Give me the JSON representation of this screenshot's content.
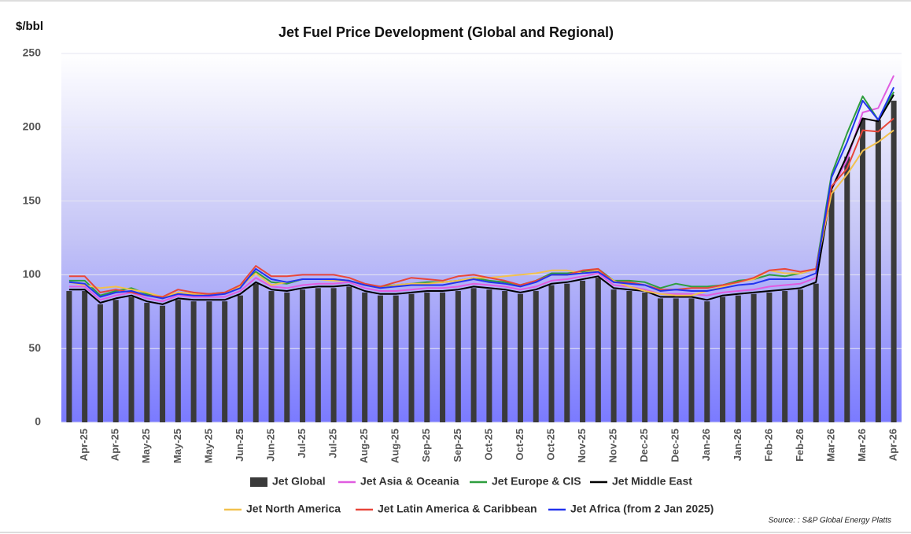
{
  "chart_data": {
    "type": "bar",
    "title": "Jet Fuel Price Development (Global and Regional)",
    "y_label": "$/bbl",
    "source": "Source:  : S&P Global Energy Platts",
    "categories": [
      null,
      "Apr-25",
      null,
      "Apr-25",
      null,
      "May-25",
      null,
      "May-25",
      null,
      "May-25",
      null,
      "Jun-25",
      null,
      "Jun-25",
      null,
      "Jul-25",
      null,
      "Jul-25",
      null,
      "Aug-25",
      null,
      "Aug-25",
      null,
      "Sep-25",
      null,
      "Sep-25",
      null,
      "Oct-25",
      null,
      "Oct-25",
      null,
      "Oct-25",
      null,
      "Nov-25",
      null,
      "Nov-25",
      null,
      "Dec-25",
      null,
      "Dec-25",
      null,
      "Jan-26",
      null,
      "Jan-26",
      null,
      "Feb-26",
      null,
      "Feb-26",
      null,
      "Mar-26",
      null,
      "Mar-26",
      null,
      "Apr-26"
    ],
    "ylim": [
      0,
      250
    ],
    "yticks": [
      0,
      50,
      100,
      150,
      200,
      250
    ],
    "grid": true,
    "series": [
      {
        "name": "Jet Global",
        "type": "bar",
        "color": "#3a3a3a",
        "values": [
          89,
          89,
          80,
          83,
          85,
          81,
          79,
          83,
          82,
          82,
          82,
          86,
          94,
          89,
          88,
          90,
          91,
          91,
          92,
          88,
          86,
          86,
          87,
          88,
          88,
          89,
          91,
          90,
          89,
          87,
          89,
          93,
          94,
          96,
          98,
          90,
          89,
          88,
          84,
          84,
          84,
          82,
          85,
          86,
          87,
          88,
          89,
          90,
          94,
          157,
          180,
          206,
          205,
          218
        ]
      },
      {
        "name": "Jet Asia & Oceania",
        "type": "line",
        "color": "#e05ce0",
        "values": [
          92,
          92,
          83,
          86,
          88,
          84,
          82,
          86,
          85,
          85,
          85,
          89,
          98,
          92,
          91,
          93,
          94,
          94,
          95,
          91,
          89,
          89,
          90,
          91,
          91,
          92,
          94,
          93,
          92,
          90,
          92,
          96,
          97,
          99,
          101,
          93,
          92,
          90,
          87,
          87,
          87,
          86,
          88,
          89,
          90,
          92,
          93,
          94,
          98,
          158,
          178,
          210,
          213,
          235
        ]
      },
      {
        "name": "Jet Europe & CIS",
        "type": "line",
        "color": "#2e9e3e",
        "values": [
          96,
          96,
          86,
          89,
          91,
          87,
          84,
          88,
          87,
          87,
          88,
          92,
          102,
          95,
          94,
          97,
          97,
          97,
          96,
          93,
          92,
          93,
          94,
          95,
          95,
          96,
          98,
          96,
          95,
          93,
          96,
          101,
          101,
          102,
          104,
          96,
          96,
          95,
          91,
          94,
          92,
          92,
          93,
          96,
          97,
          100,
          99,
          101,
          104,
          168,
          196,
          221,
          205,
          224
        ]
      },
      {
        "name": "Jet Middle East",
        "type": "line",
        "color": "#000000",
        "values": [
          90,
          90,
          81,
          84,
          86,
          82,
          80,
          84,
          83,
          83,
          83,
          87,
          95,
          90,
          89,
          91,
          92,
          92,
          93,
          89,
          87,
          87,
          88,
          89,
          89,
          90,
          92,
          91,
          90,
          88,
          90,
          94,
          95,
          97,
          99,
          91,
          90,
          89,
          85,
          85,
          85,
          83,
          86,
          87,
          88,
          89,
          90,
          91,
          95,
          158,
          181,
          206,
          204,
          222
        ]
      },
      {
        "name": "Jet North America",
        "type": "line",
        "color": "#f2c14e",
        "values": [
          95,
          93,
          91,
          92,
          90,
          88,
          85,
          88,
          87,
          86,
          88,
          92,
          101,
          93,
          95,
          97,
          97,
          96,
          96,
          93,
          91,
          93,
          94,
          94,
          95,
          96,
          98,
          98,
          99,
          100,
          101,
          103,
          103,
          101,
          103,
          96,
          92,
          89,
          87,
          86,
          86,
          89,
          92,
          95,
          97,
          103,
          101,
          101,
          104,
          155,
          168,
          184,
          190,
          198
        ]
      },
      {
        "name": "Jet Latin America & Caribbean",
        "type": "line",
        "color": "#e8463a",
        "values": [
          99,
          99,
          88,
          90,
          88,
          86,
          85,
          90,
          88,
          87,
          88,
          93,
          106,
          99,
          99,
          100,
          100,
          100,
          98,
          94,
          92,
          95,
          98,
          97,
          96,
          99,
          100,
          98,
          96,
          93,
          96,
          100,
          100,
          103,
          104,
          95,
          95,
          93,
          90,
          90,
          91,
          91,
          93,
          95,
          98,
          103,
          104,
          102,
          104,
          160,
          172,
          198,
          197,
          206
        ]
      },
      {
        "name": "Jet Africa (from 2 Jan 2025)",
        "type": "line",
        "color": "#2233ee",
        "values": [
          95,
          94,
          85,
          88,
          89,
          86,
          84,
          87,
          86,
          86,
          87,
          91,
          104,
          97,
          95,
          97,
          97,
          97,
          96,
          93,
          91,
          92,
          93,
          93,
          93,
          95,
          97,
          95,
          94,
          92,
          95,
          100,
          100,
          101,
          102,
          95,
          94,
          93,
          89,
          90,
          89,
          89,
          91,
          93,
          94,
          97,
          97,
          97,
          101,
          166,
          190,
          218,
          205,
          227
        ]
      }
    ]
  }
}
